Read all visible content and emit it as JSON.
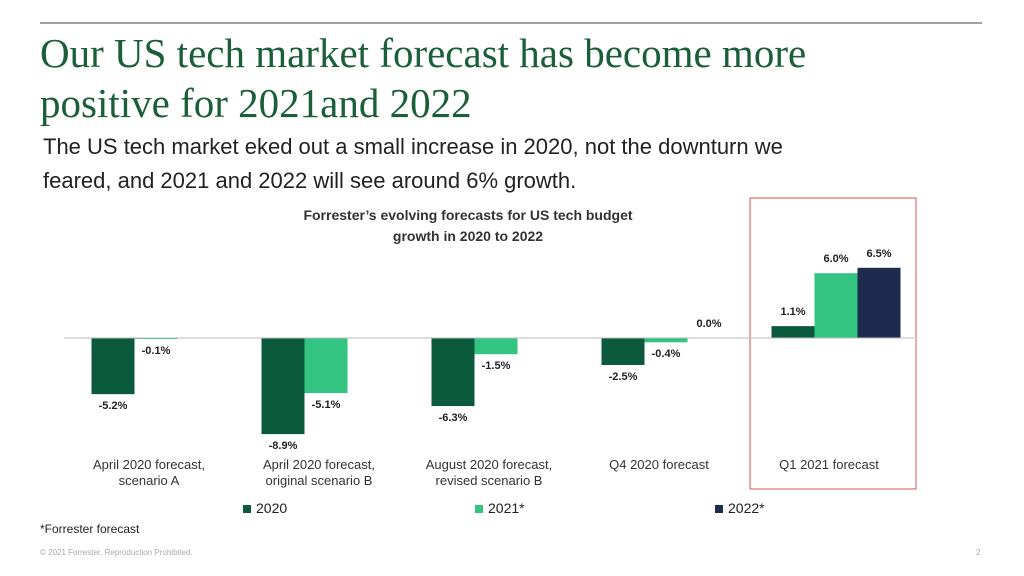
{
  "slide": {
    "title": "Our US tech market forecast has become more\npositive for 2021and 2022",
    "subtitle": "The US tech market eked out a small increase in 2020, not the downturn we\nfeared, and 2021 and 2022 will see around 6% growth.",
    "footnote": "*Forrester forecast",
    "copyright": "© 2021 Forrester. Reproduction Prohibited.",
    "page_number": "2"
  },
  "chart_data": {
    "type": "bar",
    "title": "Forrester’s evolving forecasts for US tech budget\ngrowth in 2020 to 2022",
    "categories": [
      "April 2020 forecast,\nscenario A",
      "April 2020 forecast,\noriginal scenario B",
      "August 2020 forecast,\nrevised scenario B",
      "Q4 2020 forecast",
      "Q1 2021 forecast"
    ],
    "series": [
      {
        "name": "2020",
        "color": "#0b5a3e",
        "values": [
          -5.2,
          -8.9,
          -6.3,
          -2.5,
          1.1
        ],
        "value_labels": [
          "-5.2%",
          "-8.9%",
          "-6.3%",
          "-2.5%",
          "1.1%"
        ]
      },
      {
        "name": "2021*",
        "color": "#33c481",
        "values": [
          -0.1,
          -5.1,
          -1.5,
          -0.4,
          6.0
        ],
        "value_labels": [
          "-0.1%",
          "-5.1%",
          "-1.5%",
          "-0.4%",
          "6.0%"
        ]
      },
      {
        "name": "2022*",
        "color": "#1f2a4f",
        "values": [
          null,
          null,
          null,
          0.0,
          6.5
        ],
        "value_labels": [
          null,
          null,
          null,
          "0.0%",
          "6.5%"
        ]
      }
    ],
    "ylim": [
      -9,
      7
    ],
    "highlight_color": "#d9534f"
  }
}
